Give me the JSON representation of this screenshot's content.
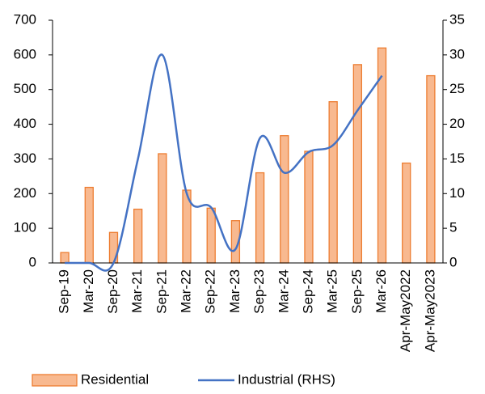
{
  "chart_data": {
    "type": "bar-line",
    "categories": [
      "Sep-19",
      "Mar-20",
      "Sep-20",
      "Mar-21",
      "Sep-21",
      "Mar-22",
      "Sep-22",
      "Mar-23",
      "Sep-23",
      "Mar-24",
      "Sep-24",
      "Mar-25",
      "Sep-25",
      "Mar-26",
      "Apr-May2022",
      "Apr-May2023"
    ],
    "series": [
      {
        "name": "Residential",
        "type": "bar",
        "color": "#f8b990",
        "edge_color": "#ed7d31",
        "values": [
          30,
          218,
          88,
          155,
          315,
          210,
          158,
          122,
          260,
          367,
          322,
          465,
          572,
          620,
          288,
          540
        ]
      },
      {
        "name": "Industrial (RHS)",
        "type": "line",
        "axis": "y2",
        "color": "#4472c4",
        "smooth": true,
        "values": [
          0,
          0,
          0,
          15,
          30,
          10,
          8,
          2,
          18,
          13,
          16,
          17,
          22,
          27,
          null,
          null
        ]
      }
    ],
    "ylim": [
      0,
      700
    ],
    "yticks": [
      0,
      100,
      200,
      300,
      400,
      500,
      600,
      700
    ],
    "y2lim": [
      0,
      35
    ],
    "y2ticks": [
      0,
      5,
      10,
      15,
      20,
      25,
      30,
      35
    ],
    "grid": false,
    "legend": "bottom"
  }
}
